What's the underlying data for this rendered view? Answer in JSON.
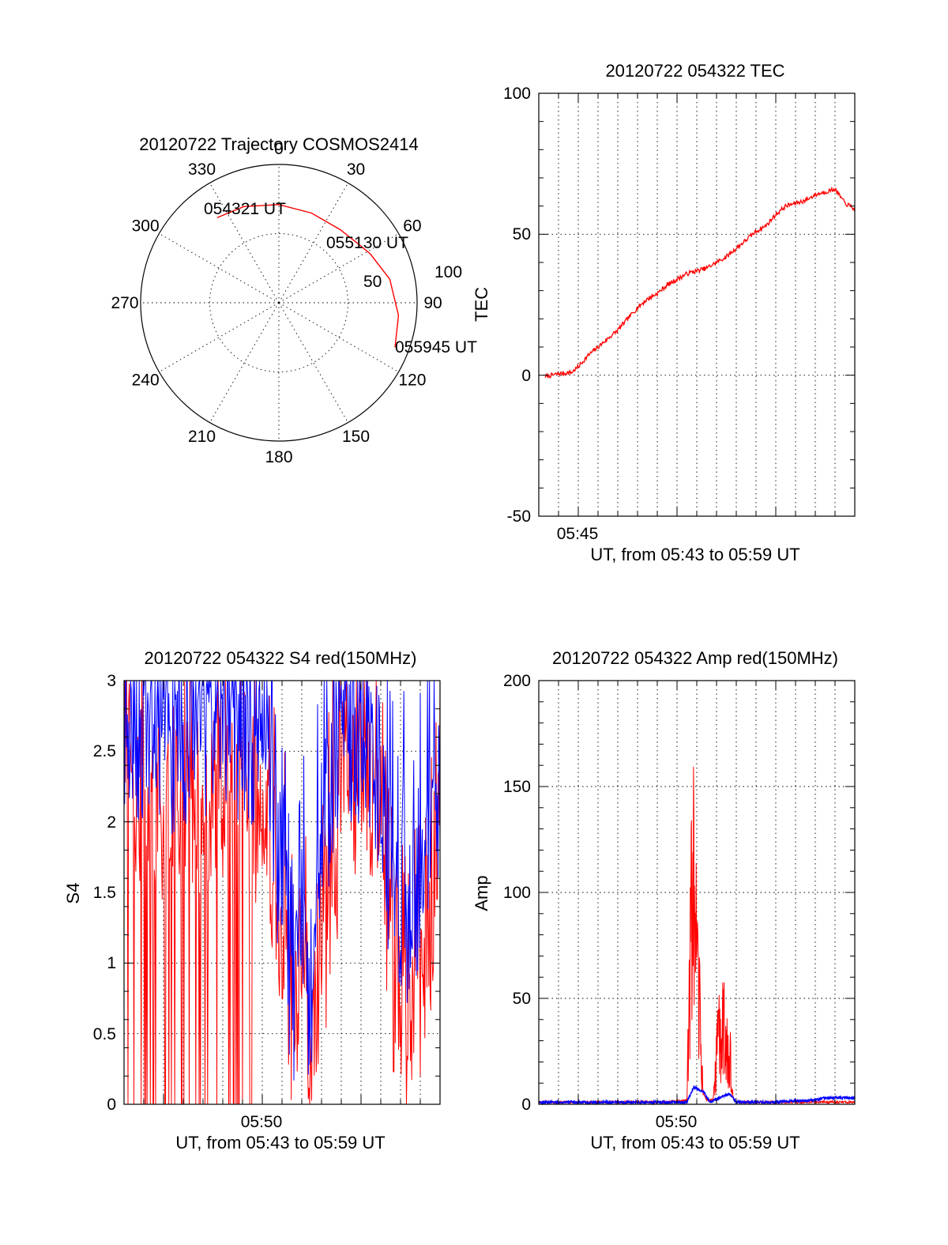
{
  "colors": {
    "red_series": "#ff0000",
    "blue_series": "#0000ff",
    "axes": "#000000",
    "background": "#ffffff"
  },
  "chart_data": [
    {
      "type": "polar-trajectory",
      "title": "20120722 Trajectory COSMOS2414",
      "azimuth_labels": [
        "0",
        "30",
        "60",
        "90",
        "120",
        "150",
        "180",
        "210",
        "240",
        "270",
        "300",
        "330"
      ],
      "radial_labels": [
        "50",
        "100"
      ],
      "grid": true,
      "trajectory": {
        "points_az_zenith": [
          [
            324,
            76
          ],
          [
            340,
            74
          ],
          [
            0,
            71
          ],
          [
            20,
            69
          ],
          [
            40,
            69
          ],
          [
            55,
            72
          ],
          [
            62,
            75
          ],
          [
            78,
            82
          ],
          [
            96,
            87
          ],
          [
            105,
            88
          ],
          [
            111,
            90
          ]
        ],
        "time_labels": [
          "054321 UT",
          "055130 UT",
          "055945 UT"
        ]
      }
    },
    {
      "type": "line",
      "title": "20120722 054322 TEC",
      "xlabel": "UT, from 05:43 to 05:59 UT",
      "ylabel": "TEC",
      "x_tick_labels": [
        "05:45"
      ],
      "y_tick_labels": [
        "100",
        "50",
        "0",
        "-50"
      ],
      "xlim": [
        "05:43",
        "05:59"
      ],
      "ylim": [
        -50,
        100
      ],
      "grid": true,
      "series": [
        {
          "color": "#ff0000",
          "x": [
            "05:43:20",
            "05:44:00",
            "05:44:40",
            "05:45:00",
            "05:45:30",
            "05:46:00",
            "05:46:30",
            "05:47:00",
            "05:47:30",
            "05:48:00",
            "05:48:30",
            "05:49:00",
            "05:49:30",
            "05:50:00",
            "05:50:30",
            "05:51:00",
            "05:51:30",
            "05:52:00",
            "05:52:30",
            "05:53:00",
            "05:53:30",
            "05:54:00",
            "05:54:30",
            "05:55:00",
            "05:55:30",
            "05:56:00",
            "05:56:30",
            "05:57:00",
            "05:57:30",
            "05:58:00",
            "05:58:30",
            "05:59:00"
          ],
          "values": [
            -0.5,
            0.5,
            1.0,
            3.0,
            7.0,
            10.0,
            13.0,
            16.0,
            20.0,
            24.0,
            27.0,
            29.0,
            32.0,
            34.0,
            36.0,
            37.0,
            38.0,
            40.0,
            42.0,
            45.0,
            48.0,
            51.0,
            53.0,
            57.0,
            60.0,
            61.0,
            62.0,
            64.0,
            65.0,
            66.0,
            61.0,
            59.0
          ]
        }
      ]
    },
    {
      "type": "line",
      "title": "20120722 054322 S4 red(150MHz)",
      "xlabel": "UT, from 05:43 to 05:59 UT",
      "ylabel": "S4",
      "x_tick_labels": [
        "05:50"
      ],
      "y_tick_labels": [
        "3",
        "2.5",
        "2",
        "1.5",
        "1",
        "0.5",
        "0"
      ],
      "xlim": [
        "05:43",
        "05:59"
      ],
      "ylim": [
        0,
        3
      ],
      "grid": true,
      "series": [
        {
          "color": "#ff0000",
          "x": [
            "05:43:00",
            "05:44:00",
            "05:45:00",
            "05:46:00",
            "05:47:00",
            "05:48:00",
            "05:49:00",
            "05:50:00",
            "05:50:30",
            "05:51:00",
            "05:51:30",
            "05:52:00",
            "05:52:30",
            "05:53:00",
            "05:54:00",
            "05:55:00",
            "05:56:00",
            "05:56:30",
            "05:57:00",
            "05:57:30",
            "05:58:00",
            "05:58:30",
            "05:59:00"
          ],
          "values": [
            2.6,
            2.2,
            2.0,
            2.2,
            2.1,
            2.3,
            2.4,
            2.0,
            1.8,
            1.3,
            0.5,
            1.1,
            0.3,
            1.0,
            2.0,
            2.4,
            2.0,
            1.0,
            0.7,
            0.4,
            0.9,
            1.2,
            2.3
          ]
        },
        {
          "color": "#0000ff",
          "x": [
            "05:43:00",
            "05:44:00",
            "05:45:00",
            "05:46:00",
            "05:47:00",
            "05:48:00",
            "05:49:00",
            "05:50:00",
            "05:50:30",
            "05:51:00",
            "05:51:30",
            "05:52:00",
            "05:52:30",
            "05:53:00",
            "05:54:00",
            "05:55:00",
            "05:56:00",
            "05:56:30",
            "05:57:00",
            "05:57:30",
            "05:58:00",
            "05:58:30",
            "05:59:00"
          ],
          "values": [
            2.8,
            2.6,
            2.5,
            2.7,
            2.6,
            2.8,
            2.7,
            2.4,
            2.2,
            1.5,
            0.5,
            1.6,
            0.5,
            2.0,
            2.6,
            2.7,
            2.3,
            1.6,
            1.5,
            1.4,
            1.7,
            1.9,
            2.4
          ]
        }
      ]
    },
    {
      "type": "line",
      "title": "20120722 054322 Amp red(150MHz)",
      "xlabel": "UT, from 05:43 to 05:59 UT",
      "ylabel": "Amp",
      "x_tick_labels": [
        "05:50"
      ],
      "y_tick_labels": [
        "200",
        "150",
        "100",
        "50",
        "0"
      ],
      "xlim": [
        "05:43",
        "05:59"
      ],
      "ylim": [
        0,
        200
      ],
      "grid": true,
      "series": [
        {
          "color": "#ff0000",
          "x": [
            "05:43:00",
            "05:49:30",
            "05:50:30",
            "05:50:40",
            "05:50:50",
            "05:51:00",
            "05:51:10",
            "05:51:20",
            "05:51:30",
            "05:51:50",
            "05:52:00",
            "05:52:10",
            "05:52:20",
            "05:52:30",
            "05:52:40",
            "05:52:50",
            "05:53:00",
            "05:59:00"
          ],
          "values": [
            1,
            1,
            2,
            120,
            152,
            100,
            60,
            5,
            2,
            2,
            35,
            68,
            60,
            55,
            40,
            3,
            1,
            1
          ]
        },
        {
          "color": "#0000ff",
          "x": [
            "05:43:00",
            "05:46:00",
            "05:49:30",
            "05:50:30",
            "05:50:50",
            "05:51:20",
            "05:51:40",
            "05:52:10",
            "05:52:40",
            "05:53:00",
            "05:55:00",
            "05:57:00",
            "05:57:30",
            "05:58:00",
            "05:59:00"
          ],
          "values": [
            1,
            1,
            1,
            1,
            8,
            6,
            1,
            3,
            5,
            1,
            1,
            2,
            3,
            3,
            3
          ]
        }
      ]
    }
  ]
}
